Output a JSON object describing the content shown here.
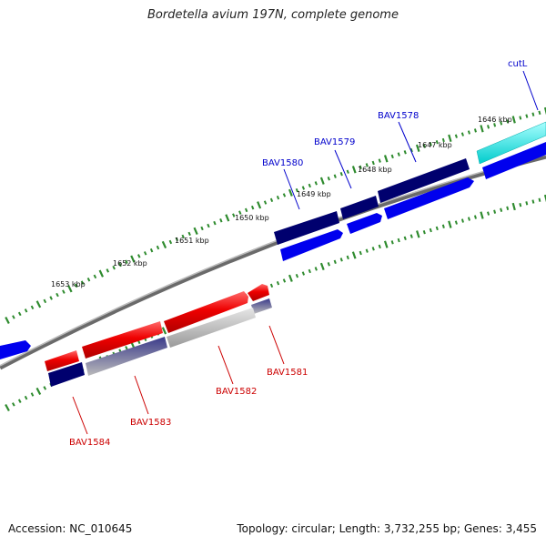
{
  "title": "Bordetella avium 197N, complete genome",
  "footer": {
    "accession": "Accession: NC_010645",
    "topology": "Topology: circular; Length: 3,732,255 bp; Genes: 3,455"
  },
  "colors": {
    "forward_cds": "#0000ee",
    "forward_cds_dark": "#00006e",
    "cutl_gene": "#00eeee",
    "reverse_cds": "#ee0000",
    "reverse_shadow": "#bbbbbb",
    "reverse_cds_dark": "#2a2a80",
    "backbone": "#888888",
    "tick": "#2e8b2e",
    "forward_label": "#0000cc",
    "reverse_label": "#cc0000"
  },
  "ruler_labels": [
    "1646 kbp",
    "1647 kbp",
    "1648 kbp",
    "1649 kbp",
    "1650 kbp",
    "1651 kbp",
    "1652 kbp",
    "1653 kbp"
  ],
  "forward_gene_labels": [
    "cutL",
    "BAV1578",
    "BAV1579",
    "BAV1580"
  ],
  "reverse_gene_labels": [
    "BAV1581",
    "BAV1582",
    "BAV1583",
    "BAV1584"
  ]
}
